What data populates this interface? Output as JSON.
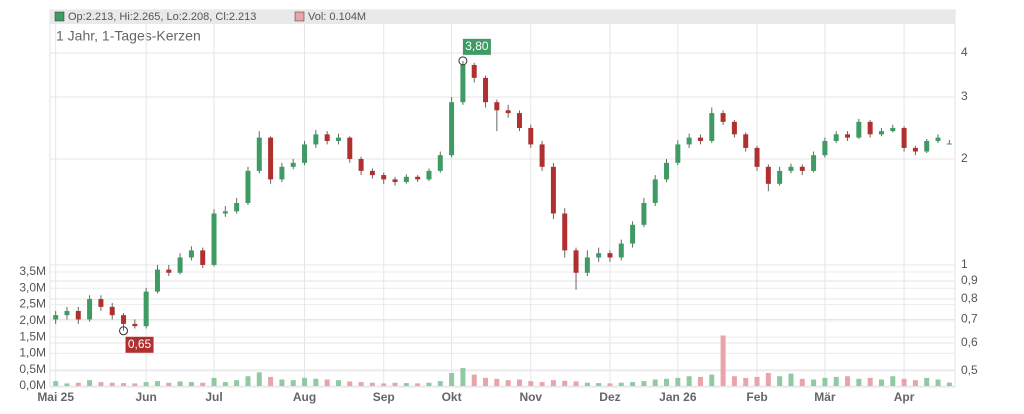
{
  "chart_data": {
    "type": "candlestick",
    "title": "1 Jahr, 1-Tages-Kerzen",
    "legend": {
      "price": "Op:2.213, Hi:2.265, Lo:2.208, Cl:2.213",
      "volume": "Vol: 0.104M"
    },
    "high_label": "3,80",
    "low_label": "0,65",
    "categories": [
      "Mai 25",
      null,
      null,
      null,
      null,
      null,
      null,
      null,
      "Jun",
      null,
      null,
      null,
      null,
      null,
      "Jul",
      null,
      null,
      null,
      null,
      null,
      null,
      null,
      "Aug",
      null,
      null,
      null,
      null,
      null,
      null,
      "Sep",
      null,
      null,
      null,
      null,
      null,
      "Okt",
      null,
      null,
      null,
      null,
      null,
      null,
      "Nov",
      null,
      null,
      null,
      null,
      null,
      null,
      "Dez",
      null,
      null,
      null,
      null,
      null,
      "Jan 26",
      null,
      null,
      null,
      null,
      null,
      null,
      "Feb",
      null,
      null,
      null,
      null,
      null,
      "Mär",
      null,
      null,
      null,
      null,
      null,
      null,
      "Apr",
      null,
      null,
      null,
      null
    ],
    "open": [
      0.7,
      0.72,
      0.74,
      0.7,
      0.8,
      0.76,
      0.72,
      0.68,
      0.67,
      0.84,
      0.97,
      0.95,
      1.05,
      1.1,
      1.0,
      1.4,
      1.42,
      1.5,
      1.85,
      2.3,
      1.75,
      1.9,
      1.95,
      2.2,
      2.35,
      2.25,
      2.3,
      2.0,
      1.85,
      1.8,
      1.75,
      1.72,
      1.78,
      1.75,
      1.85,
      2.05,
      2.9,
      3.7,
      3.4,
      2.9,
      2.75,
      2.7,
      2.45,
      2.2,
      1.9,
      1.4,
      1.1,
      0.95,
      1.05,
      1.08,
      1.05,
      1.15,
      1.3,
      1.5,
      1.75,
      1.95,
      2.2,
      2.3,
      2.25,
      2.7,
      2.55,
      2.35,
      2.15,
      1.9,
      1.7,
      1.85,
      1.9,
      1.85,
      2.05,
      2.25,
      2.35,
      2.3,
      2.55,
      2.35,
      2.4,
      2.45,
      2.15,
      2.1,
      2.25,
      2.213
    ],
    "high": [
      0.74,
      0.76,
      0.76,
      0.82,
      0.82,
      0.78,
      0.73,
      0.7,
      0.86,
      1.0,
      1.0,
      1.08,
      1.13,
      1.12,
      1.44,
      1.47,
      1.55,
      1.9,
      2.4,
      2.32,
      1.95,
      2.0,
      2.25,
      2.42,
      2.4,
      2.36,
      2.32,
      2.03,
      1.88,
      1.83,
      1.78,
      1.81,
      1.8,
      1.88,
      2.1,
      3.0,
      3.8,
      3.75,
      3.45,
      2.95,
      2.85,
      2.75,
      2.5,
      2.25,
      1.95,
      1.45,
      1.12,
      1.1,
      1.12,
      1.1,
      1.18,
      1.33,
      1.55,
      1.8,
      2.0,
      2.26,
      2.36,
      2.35,
      2.8,
      2.75,
      2.58,
      2.38,
      2.18,
      1.93,
      1.9,
      1.94,
      1.93,
      2.1,
      2.3,
      2.4,
      2.4,
      2.6,
      2.58,
      2.45,
      2.5,
      2.48,
      2.18,
      2.28,
      2.35,
      2.265
    ],
    "low": [
      0.68,
      0.7,
      0.68,
      0.69,
      0.74,
      0.7,
      0.65,
      0.66,
      0.66,
      0.83,
      0.93,
      0.94,
      1.03,
      0.98,
      0.99,
      1.37,
      1.4,
      1.48,
      1.82,
      1.7,
      1.72,
      1.87,
      1.92,
      2.15,
      2.2,
      2.2,
      1.95,
      1.8,
      1.76,
      1.7,
      1.68,
      1.7,
      1.72,
      1.73,
      1.83,
      2.02,
      2.85,
      3.3,
      2.8,
      2.4,
      2.62,
      2.4,
      2.15,
      1.85,
      1.35,
      1.05,
      0.85,
      0.93,
      1.02,
      1.02,
      1.03,
      1.12,
      1.28,
      1.47,
      1.72,
      1.92,
      2.15,
      2.2,
      2.22,
      2.5,
      2.3,
      2.1,
      1.85,
      1.62,
      1.68,
      1.82,
      1.8,
      1.83,
      2.02,
      2.22,
      2.25,
      2.28,
      2.3,
      2.32,
      2.38,
      2.1,
      2.05,
      2.08,
      2.22,
      2.208
    ],
    "close": [
      0.72,
      0.74,
      0.7,
      0.8,
      0.76,
      0.72,
      0.68,
      0.67,
      0.84,
      0.97,
      0.95,
      1.05,
      1.1,
      1.0,
      1.4,
      1.42,
      1.5,
      1.85,
      2.3,
      1.75,
      1.9,
      1.95,
      2.2,
      2.35,
      2.25,
      2.3,
      2.0,
      1.85,
      1.8,
      1.75,
      1.72,
      1.78,
      1.75,
      1.85,
      2.05,
      2.9,
      3.7,
      3.4,
      2.9,
      2.75,
      2.7,
      2.45,
      2.2,
      1.9,
      1.4,
      1.1,
      0.95,
      1.05,
      1.08,
      1.05,
      1.15,
      1.3,
      1.5,
      1.75,
      1.95,
      2.2,
      2.3,
      2.25,
      2.7,
      2.55,
      2.35,
      2.15,
      1.9,
      1.7,
      1.85,
      1.9,
      1.85,
      2.05,
      2.25,
      2.35,
      2.3,
      2.55,
      2.35,
      2.4,
      2.45,
      2.15,
      2.1,
      2.25,
      2.3,
      2.213
    ],
    "volume": [
      0.15,
      0.08,
      0.1,
      0.18,
      0.12,
      0.1,
      0.09,
      0.08,
      0.12,
      0.15,
      0.1,
      0.14,
      0.12,
      0.1,
      0.25,
      0.12,
      0.18,
      0.3,
      0.42,
      0.28,
      0.2,
      0.18,
      0.25,
      0.22,
      0.2,
      0.18,
      0.14,
      0.12,
      0.1,
      0.08,
      0.1,
      0.09,
      0.08,
      0.1,
      0.15,
      0.4,
      0.55,
      0.35,
      0.25,
      0.22,
      0.18,
      0.2,
      0.15,
      0.12,
      0.18,
      0.16,
      0.14,
      0.1,
      0.09,
      0.08,
      0.1,
      0.12,
      0.15,
      0.2,
      0.22,
      0.25,
      0.3,
      0.28,
      0.35,
      1.55,
      0.3,
      0.25,
      0.28,
      0.4,
      0.3,
      0.38,
      0.22,
      0.2,
      0.25,
      0.28,
      0.3,
      0.22,
      0.25,
      0.2,
      0.3,
      0.22,
      0.18,
      0.25,
      0.2,
      0.104
    ],
    "up_color": "#3f9b64",
    "down_color": "#b03030",
    "up_volume_color": "#8fcaa3",
    "down_volume_color": "#e9a3ab",
    "log_y": true,
    "grid": true,
    "ylim": [
      0.45,
      5.3
    ],
    "yticks": [
      {
        "value": 0.5,
        "label": "0,5"
      },
      {
        "value": 0.6,
        "label": "0,6"
      },
      {
        "value": 0.7,
        "label": "0,7"
      },
      {
        "value": 0.8,
        "label": "0,8"
      },
      {
        "value": 0.9,
        "label": "0,9"
      },
      1,
      2,
      3,
      4
    ],
    "y2lim": [
      0,
      3.5
    ],
    "y2ticks": [
      {
        "value": 0,
        "label": "0,0M"
      },
      {
        "value": 0.5,
        "label": "0,5M"
      },
      {
        "value": 1,
        "label": "1,0M"
      },
      {
        "value": 1.5,
        "label": "1,5M"
      },
      {
        "value": 2,
        "label": "2,0M"
      },
      {
        "value": 2.5,
        "label": "2,5M"
      },
      {
        "value": 3,
        "label": "3,0M"
      },
      {
        "value": 3.5,
        "label": "3,5M"
      }
    ]
  }
}
